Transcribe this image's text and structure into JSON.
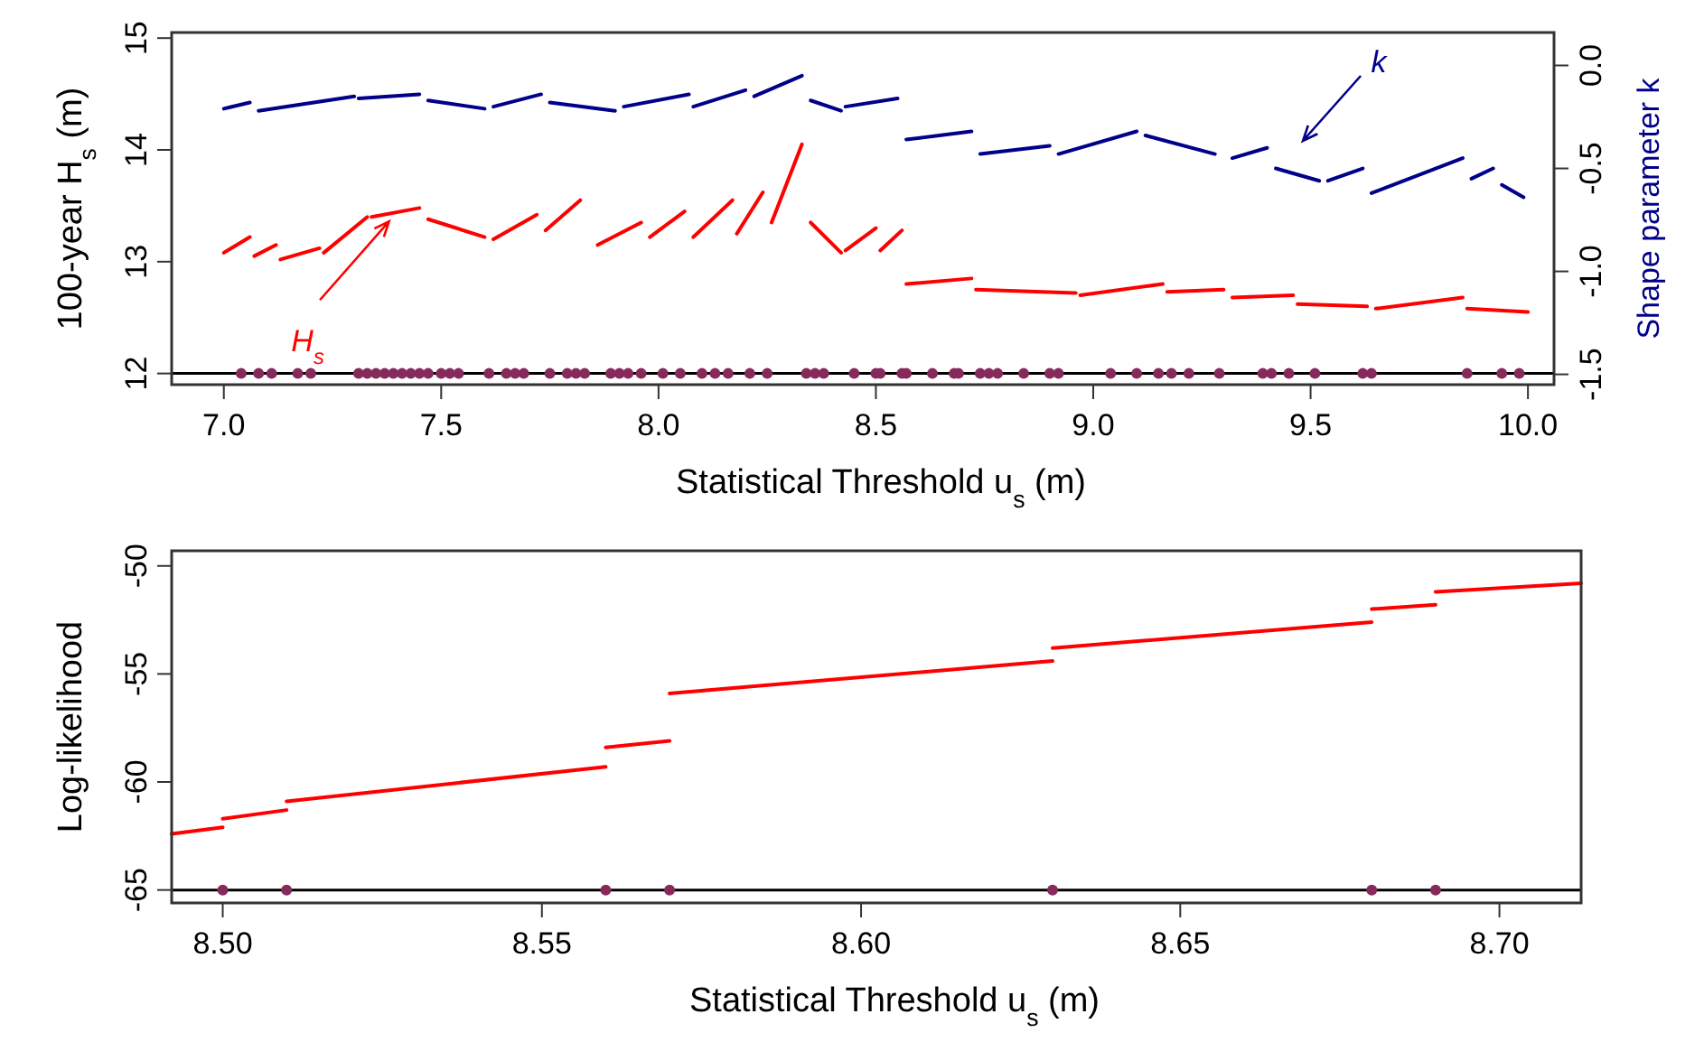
{
  "chart_data": [
    {
      "type": "line",
      "xlabel": "Statistical Threshold u$_{s}$ (m)",
      "ylabel": "100-year H$_{s}$ (m)",
      "y2label": "Shape parameter k",
      "xlim": [
        6.88,
        10.06
      ],
      "xticks": [
        {
          "value": 7,
          "label": "7.0"
        },
        7.5,
        {
          "value": 8,
          "label": "8.0"
        },
        8.5,
        {
          "value": 9,
          "label": "9.0"
        },
        9.5,
        {
          "value": 10,
          "label": "10.0"
        }
      ],
      "ylim": [
        11.9,
        15.05
      ],
      "yticks": [
        12,
        13,
        14,
        15
      ],
      "y2lim": [
        -1.55,
        0.16
      ],
      "y2ticks": [
        {
          "value": -1.5,
          "label": "-1.5"
        },
        {
          "value": -1,
          "label": "-1.0"
        },
        {
          "value": -0.5,
          "label": "-0.5"
        },
        {
          "value": 0,
          "label": "0.0"
        }
      ],
      "grid": false,
      "series": [
        {
          "color": "#ff0000",
          "x": [
            7.0,
            7.06,
            null,
            7.07,
            7.12,
            null,
            7.13,
            7.22,
            null,
            7.23,
            7.33,
            null,
            7.34,
            7.45,
            null,
            7.47,
            7.6,
            null,
            7.62,
            7.72,
            null,
            7.74,
            7.82,
            null,
            7.86,
            7.96,
            null,
            7.98,
            8.06,
            null,
            8.08,
            8.17,
            null,
            8.18,
            8.24,
            null,
            8.26,
            8.33,
            null,
            8.35,
            8.42,
            null,
            8.43,
            8.5,
            null,
            8.51,
            8.56,
            null,
            8.57,
            8.72,
            null,
            8.73,
            8.96,
            null,
            8.97,
            9.16,
            null,
            9.17,
            9.3,
            null,
            9.32,
            9.46,
            null,
            9.47,
            9.63,
            null,
            9.65,
            9.85,
            null,
            9.86,
            10.0
          ],
          "values": [
            13.08,
            13.22,
            null,
            13.05,
            13.15,
            null,
            13.02,
            13.12,
            null,
            13.08,
            13.4,
            null,
            13.4,
            13.48,
            null,
            13.38,
            13.22,
            null,
            13.2,
            13.42,
            null,
            13.28,
            13.55,
            null,
            13.15,
            13.35,
            null,
            13.22,
            13.45,
            null,
            13.22,
            13.55,
            null,
            13.25,
            13.62,
            null,
            13.35,
            14.05,
            null,
            13.35,
            13.08,
            null,
            13.1,
            13.3,
            null,
            13.1,
            13.28,
            null,
            12.8,
            12.85,
            null,
            12.75,
            12.72,
            null,
            12.7,
            12.8,
            null,
            12.73,
            12.75,
            null,
            12.68,
            12.7,
            null,
            12.62,
            12.6,
            null,
            12.58,
            12.68,
            null,
            12.58,
            12.55
          ]
        },
        {
          "axis": "y2",
          "color": "#00008b",
          "x": [
            7.0,
            7.06,
            null,
            7.08,
            7.3,
            null,
            7.31,
            7.45,
            null,
            7.47,
            7.6,
            null,
            7.62,
            7.73,
            null,
            7.75,
            7.9,
            null,
            7.92,
            8.07,
            null,
            8.08,
            8.2,
            null,
            8.22,
            8.33,
            null,
            8.35,
            8.42,
            null,
            8.43,
            8.55,
            null,
            8.57,
            8.72,
            null,
            8.74,
            8.9,
            null,
            8.92,
            9.1,
            null,
            9.12,
            9.28,
            null,
            9.32,
            9.4,
            null,
            9.42,
            9.52,
            null,
            9.54,
            9.62,
            null,
            9.64,
            9.85,
            null,
            9.87,
            9.92,
            null,
            9.94,
            9.99
          ],
          "values": [
            -0.21,
            -0.18,
            null,
            -0.22,
            -0.15,
            null,
            -0.16,
            -0.14,
            null,
            -0.17,
            -0.21,
            null,
            -0.2,
            -0.14,
            null,
            -0.18,
            -0.22,
            null,
            -0.2,
            -0.14,
            null,
            -0.2,
            -0.12,
            null,
            -0.15,
            -0.05,
            null,
            -0.17,
            -0.22,
            null,
            -0.2,
            -0.16,
            null,
            -0.36,
            -0.32,
            null,
            -0.43,
            -0.39,
            null,
            -0.43,
            -0.32,
            null,
            -0.34,
            -0.43,
            null,
            -0.45,
            -0.4,
            null,
            -0.5,
            -0.56,
            null,
            -0.56,
            -0.5,
            null,
            -0.62,
            -0.45,
            null,
            -0.55,
            -0.5,
            null,
            -0.58,
            -0.64
          ]
        },
        {
          "type": "scatter",
          "color": "#862a5c",
          "marker": "circle",
          "x": [
            7.04,
            7.08,
            7.11,
            7.17,
            7.2,
            7.31,
            7.33,
            7.35,
            7.37,
            7.39,
            7.41,
            7.43,
            7.45,
            7.47,
            7.5,
            7.52,
            7.54,
            7.61,
            7.65,
            7.67,
            7.69,
            7.75,
            7.79,
            7.81,
            7.83,
            7.89,
            7.91,
            7.93,
            7.96,
            8.01,
            8.05,
            8.1,
            8.13,
            8.16,
            8.21,
            8.25,
            8.34,
            8.36,
            8.38,
            8.45,
            8.5,
            8.51,
            8.56,
            8.57,
            8.63,
            8.68,
            8.69,
            8.74,
            8.76,
            8.78,
            8.84,
            8.9,
            8.92,
            9.04,
            9.1,
            9.15,
            9.18,
            9.22,
            9.29,
            9.39,
            9.41,
            9.45,
            9.51,
            9.62,
            9.64,
            9.86,
            9.94,
            9.98
          ],
          "values": [
            12,
            12,
            12,
            12,
            12,
            12,
            12,
            12,
            12,
            12,
            12,
            12,
            12,
            12,
            12,
            12,
            12,
            12,
            12,
            12,
            12,
            12,
            12,
            12,
            12,
            12,
            12,
            12,
            12,
            12,
            12,
            12,
            12,
            12,
            12,
            12,
            12,
            12,
            12,
            12,
            12,
            12,
            12,
            12,
            12,
            12,
            12,
            12,
            12,
            12,
            12,
            12,
            12,
            12,
            12,
            12,
            12,
            12,
            12,
            12,
            12,
            12,
            12,
            12,
            12,
            12,
            12,
            12
          ]
        }
      ],
      "ref_lines": [
        {
          "axis": "y",
          "value": 12,
          "color": "#000000"
        }
      ],
      "annotations": [
        {
          "text": "H$_{s}$",
          "x": 7.38,
          "y": 13.36
        },
        "k"
      ]
    },
    {
      "type": "line",
      "xlabel": "Statistical Threshold u$_{s}$ (m)",
      "ylabel": "Log-likelihood",
      "xlim": [
        8.492,
        8.7128
      ],
      "xticks": [
        {
          "value": 8.5,
          "label": "8.50"
        },
        8.55,
        {
          "value": 8.6,
          "label": "8.60"
        },
        8.65,
        {
          "value": 8.7,
          "label": "8.70"
        }
      ],
      "ylim": [
        -65.6,
        -49.3
      ],
      "yticks": [
        -65,
        -60,
        -55,
        -50
      ],
      "grid": false,
      "series": [
        {
          "color": "#ff0000",
          "x": [
            8.492,
            8.5,
            null,
            8.5,
            8.51,
            null,
            8.51,
            8.56,
            null,
            8.56,
            8.57,
            null,
            8.57,
            8.63,
            null,
            8.63,
            8.68,
            null,
            8.68,
            8.69,
            null,
            8.69,
            8.7128
          ],
          "values": [
            -62.4,
            -62.1,
            null,
            -61.7,
            -61.3,
            null,
            -60.9,
            -59.3,
            null,
            -58.4,
            -58.1,
            null,
            -55.9,
            -54.4,
            null,
            -53.8,
            -52.6,
            null,
            -52.0,
            -51.8,
            null,
            -51.2,
            -50.8
          ]
        },
        {
          "type": "scatter",
          "color": "#862a5c",
          "marker": "circle",
          "x": [
            8.5,
            8.51,
            8.56,
            8.57,
            8.63,
            8.68,
            8.69
          ],
          "values": [
            -65,
            -65,
            -65,
            -65,
            -65,
            -65,
            -65
          ]
        }
      ],
      "ref_lines": [
        {
          "axis": "y",
          "value": -65,
          "color": "#000000"
        }
      ]
    }
  ]
}
